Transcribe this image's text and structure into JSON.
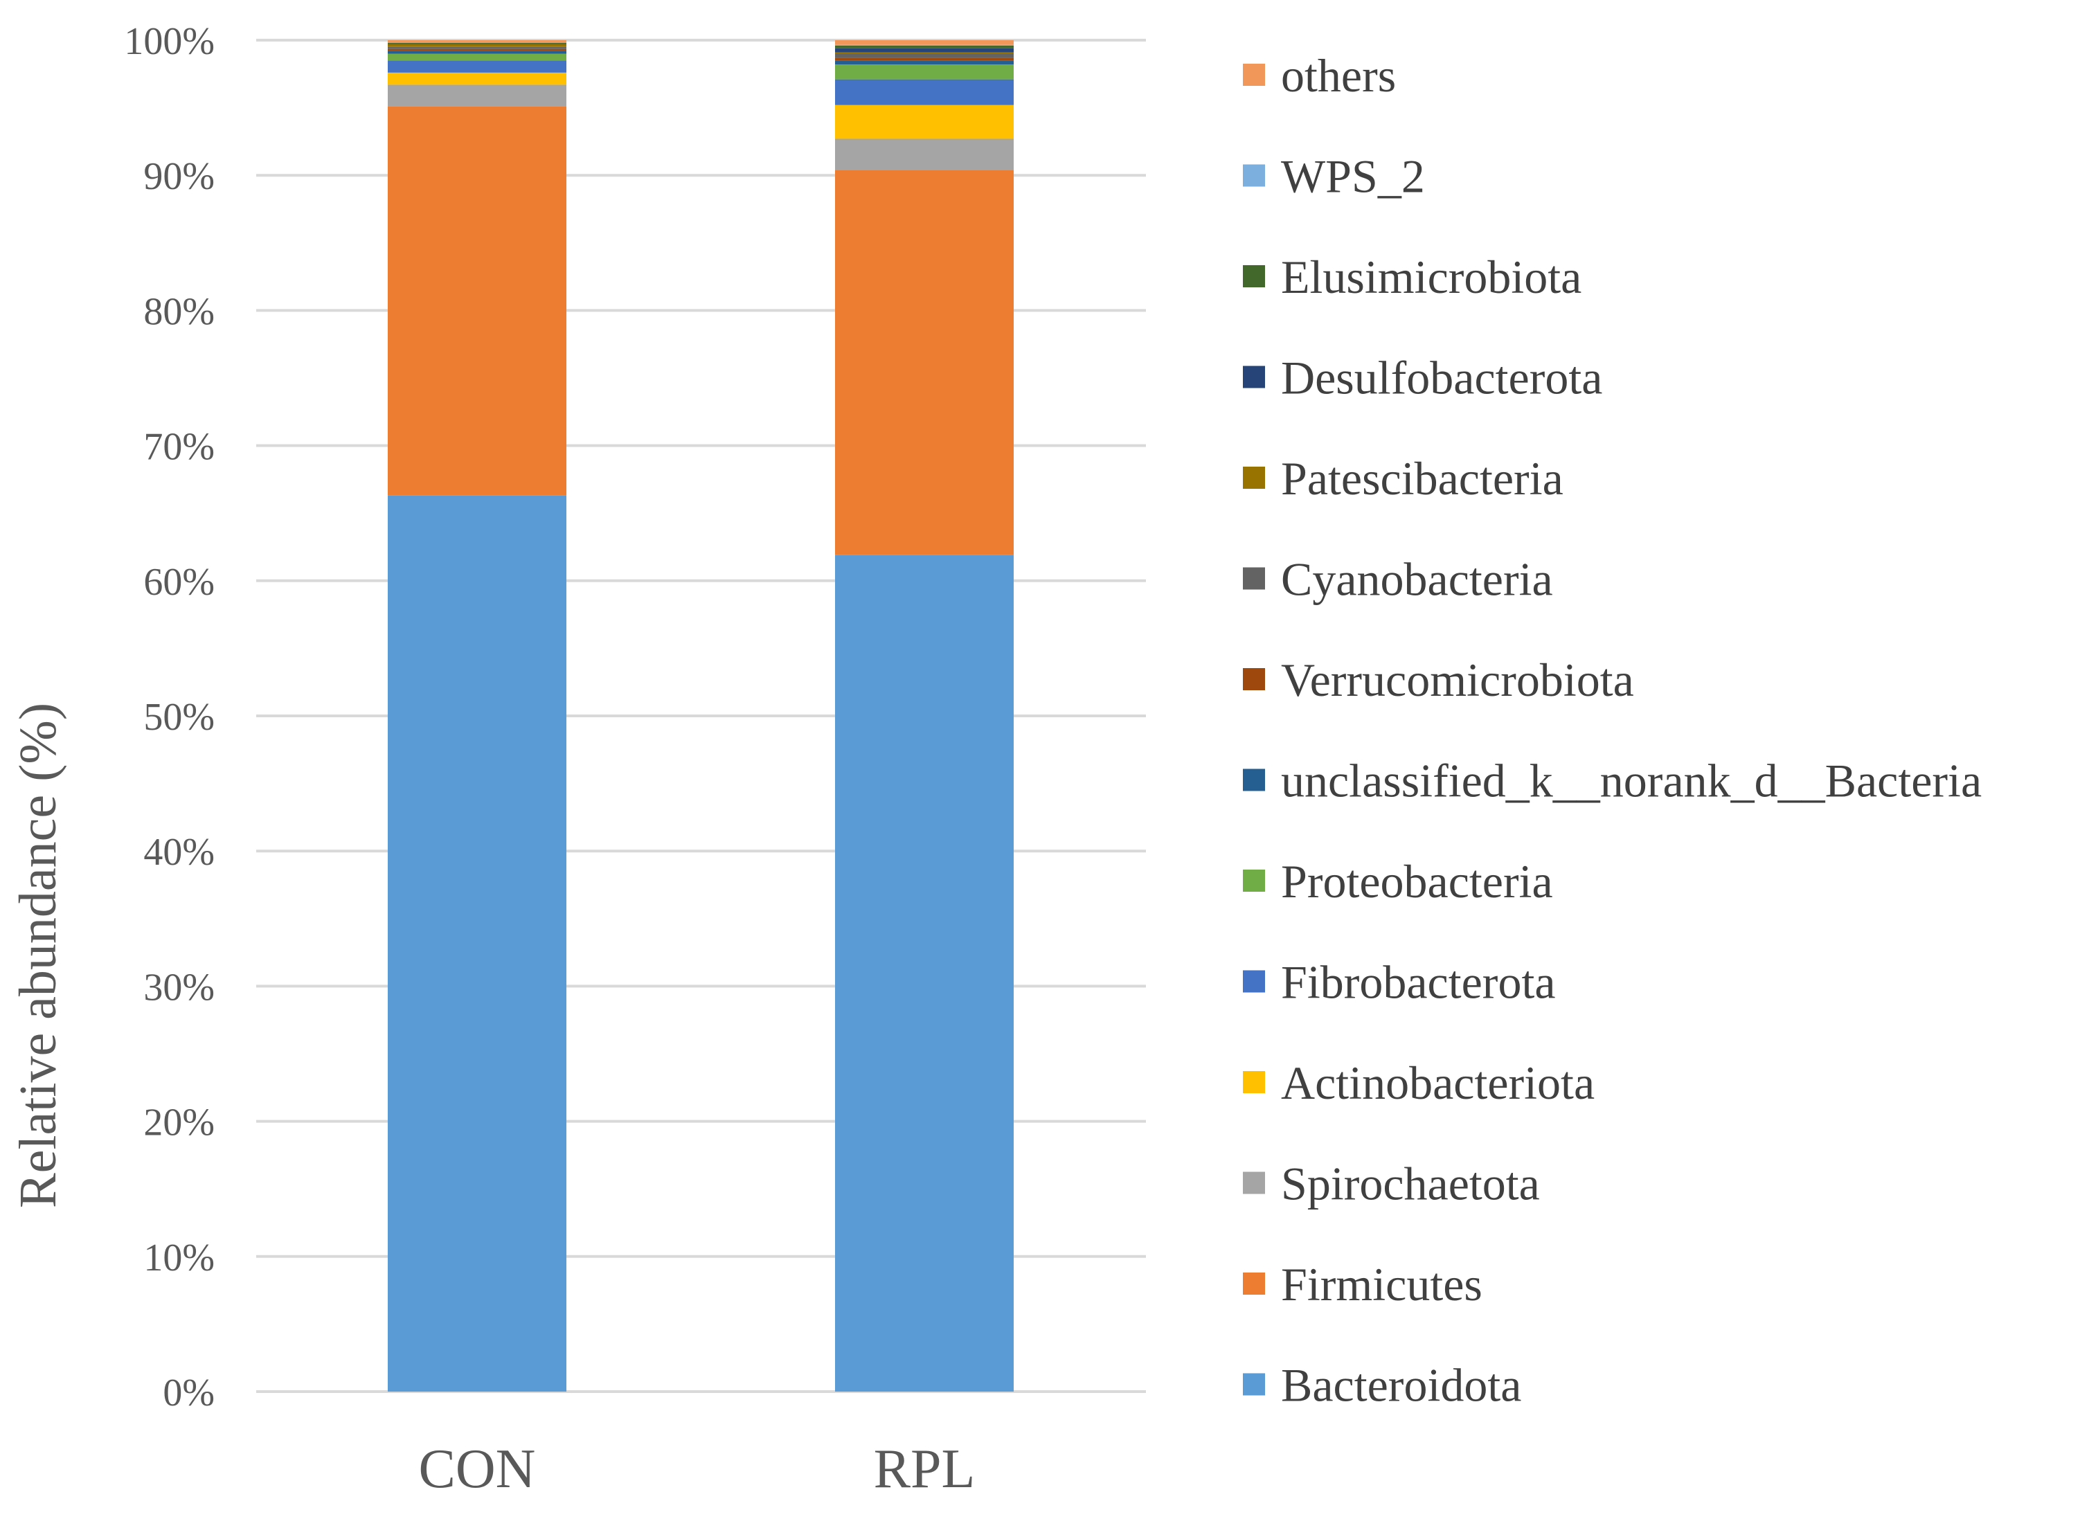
{
  "chart_data": {
    "type": "bar",
    "stacked": true,
    "categories": [
      "CON",
      "RPL"
    ],
    "ylabel": "Relative abundance (%)",
    "xlabel": "",
    "title": "",
    "ylim": [
      0,
      100
    ],
    "yticks": [
      "0%",
      "10%",
      "20%",
      "30%",
      "40%",
      "50%",
      "60%",
      "70%",
      "80%",
      "90%",
      "100%"
    ],
    "grid": true,
    "legend_position": "right",
    "series": [
      {
        "name": "Bacteroidota",
        "color": "#5B9BD5",
        "values": [
          66.3,
          61.9
        ]
      },
      {
        "name": "Firmicutes",
        "color": "#ED7D31",
        "values": [
          28.8,
          28.5
        ]
      },
      {
        "name": "Spirochaetota",
        "color": "#A5A5A5",
        "values": [
          1.6,
          2.3
        ]
      },
      {
        "name": "Actinobacteriota",
        "color": "#FFC000",
        "values": [
          0.9,
          2.5
        ]
      },
      {
        "name": "Fibrobacterota",
        "color": "#4472C4",
        "values": [
          0.9,
          1.9
        ]
      },
      {
        "name": "Proteobacteria",
        "color": "#70AD47",
        "values": [
          0.5,
          1.1
        ]
      },
      {
        "name": "unclassified_k__norank_d__Bacteria",
        "color": "#255E91",
        "values": [
          0.2,
          0.3
        ]
      },
      {
        "name": "Verrucomicrobiota",
        "color": "#9E480E",
        "values": [
          0.15,
          0.2
        ]
      },
      {
        "name": "Cyanobacteria",
        "color": "#636363",
        "values": [
          0.15,
          0.3
        ]
      },
      {
        "name": "Patescibacteria",
        "color": "#997300",
        "values": [
          0.2,
          0.1
        ]
      },
      {
        "name": "Desulfobacterota",
        "color": "#264478",
        "values": [
          0.05,
          0.3
        ]
      },
      {
        "name": "Elusimicrobiota",
        "color": "#43682B",
        "values": [
          0.05,
          0.2
        ]
      },
      {
        "name": "WPS_2",
        "color": "#7CAFDD",
        "values": [
          0.05,
          0.05
        ]
      },
      {
        "name": "others",
        "color": "#F1975A",
        "values": [
          0.15,
          0.35
        ]
      }
    ]
  }
}
